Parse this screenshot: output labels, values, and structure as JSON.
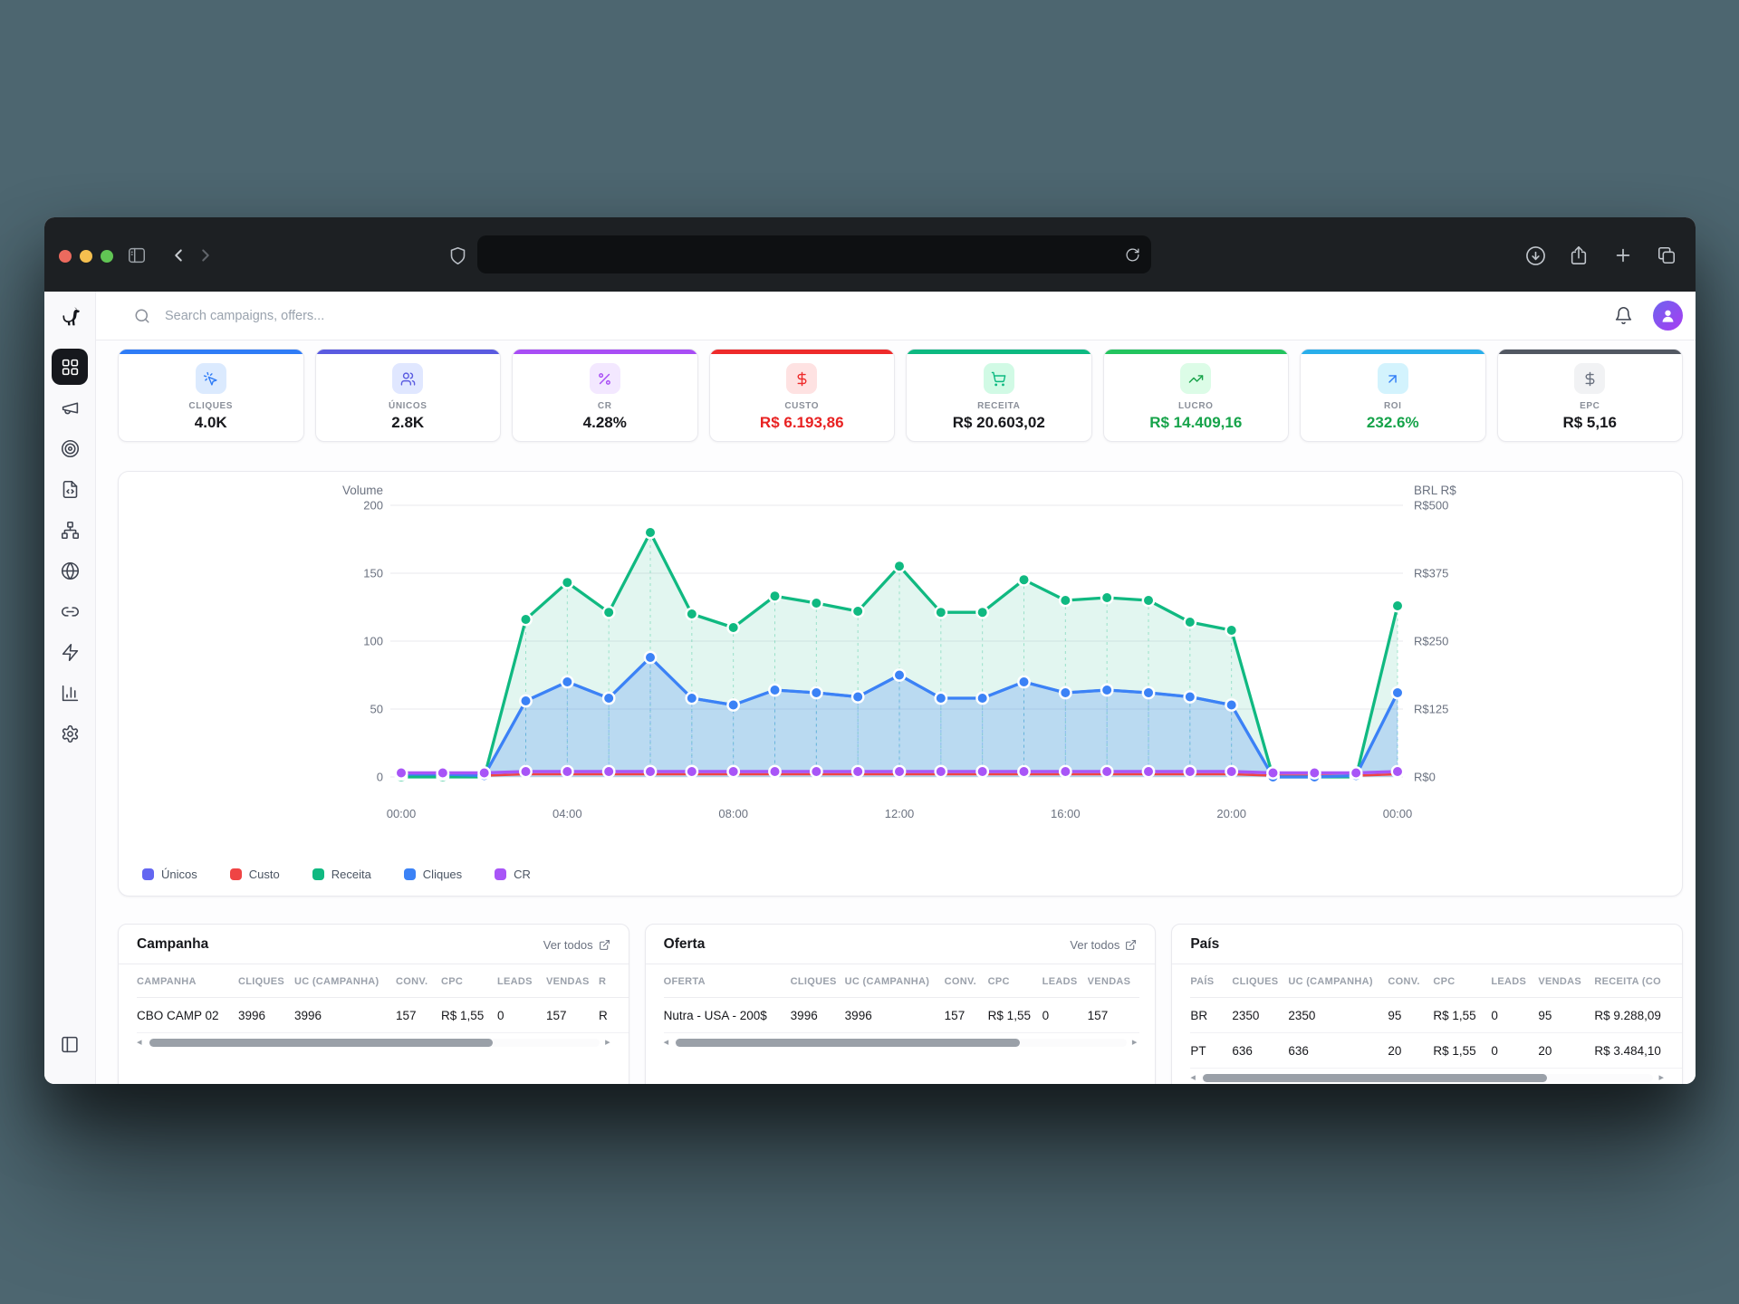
{
  "browser": {
    "url_value": ""
  },
  "app": {
    "search_placeholder": "Search campaigns, offers...",
    "sidebar": {
      "items": [
        {
          "icon": "layout-grid",
          "name": "dashboard",
          "active": true
        },
        {
          "icon": "megaphone",
          "name": "campaigns",
          "active": false
        },
        {
          "icon": "target",
          "name": "tracking",
          "active": false
        },
        {
          "icon": "file-code",
          "name": "scripts",
          "active": false
        },
        {
          "icon": "network",
          "name": "structure",
          "active": false
        },
        {
          "icon": "globe",
          "name": "domains",
          "active": false
        },
        {
          "icon": "link",
          "name": "links",
          "active": false
        },
        {
          "icon": "zap",
          "name": "automations",
          "active": false
        },
        {
          "icon": "bar-chart",
          "name": "reports",
          "active": false
        },
        {
          "icon": "settings",
          "name": "settings",
          "active": false
        }
      ]
    },
    "kpis": [
      {
        "label": "CLIQUES",
        "value": "4.0K",
        "icon": "pointer-click",
        "accent": "#2f7cf6",
        "chip_bg": "#dbeafe",
        "icon_color": "#2f7cf6",
        "value_color": "#17181c"
      },
      {
        "label": "ÚNICOS",
        "value": "2.8K",
        "icon": "users",
        "accent": "#5a5be0",
        "chip_bg": "#e0e7ff",
        "icon_color": "#5a5be0",
        "value_color": "#17181c"
      },
      {
        "label": "CR",
        "value": "4.28%",
        "icon": "percent",
        "accent": "#a84df5",
        "chip_bg": "#f3e8ff",
        "icon_color": "#a84df5",
        "value_color": "#17181c"
      },
      {
        "label": "CUSTO",
        "value": "R$ 6.193,86",
        "icon": "dollar",
        "accent": "#ee2b2b",
        "chip_bg": "#fee2e2",
        "icon_color": "#ee2b2b",
        "value_color": "#e82222"
      },
      {
        "label": "RECEITA",
        "value": "R$ 20.603,02",
        "icon": "cart",
        "accent": "#0db981",
        "chip_bg": "#d1fae5",
        "icon_color": "#0db981",
        "value_color": "#17181c"
      },
      {
        "label": "LUCRO",
        "value": "R$ 14.409,16",
        "icon": "trending-up",
        "accent": "#23c45e",
        "chip_bg": "#dcfce7",
        "icon_color": "#18a34a",
        "value_color": "#16a34a"
      },
      {
        "label": "ROI",
        "value": "232.6%",
        "icon": "arrow-up-right",
        "accent": "#29aeea",
        "chip_bg": "#d3f3fd",
        "icon_color": "#2f7cf6",
        "value_color": "#16a34a"
      },
      {
        "label": "EPC",
        "value": "R$ 5,16",
        "icon": "dollar",
        "accent": "#525862",
        "chip_bg": "#f1f2f4",
        "icon_color": "#6b7280",
        "value_color": "#17181c"
      }
    ],
    "chart_data": {
      "type": "line-area",
      "x": [
        "00:00",
        "01:00",
        "02:00",
        "03:00",
        "04:00",
        "05:00",
        "06:00",
        "07:00",
        "08:00",
        "09:00",
        "10:00",
        "11:00",
        "12:00",
        "13:00",
        "14:00",
        "15:00",
        "16:00",
        "17:00",
        "18:00",
        "19:00",
        "20:00",
        "21:00",
        "22:00",
        "23:00",
        "00:00"
      ],
      "x_tick_labels": [
        "00:00",
        "04:00",
        "08:00",
        "12:00",
        "16:00",
        "20:00",
        "00:00"
      ],
      "left_axis": {
        "title": "Volume",
        "min": 0,
        "max": 200,
        "ticks": [
          200,
          150,
          100,
          50,
          0
        ]
      },
      "right_axis": {
        "title": "BRL R$",
        "min": 0,
        "max": 500,
        "tick_labels": [
          "R$500",
          "R$375",
          "R$250",
          "R$125",
          "R$0"
        ]
      },
      "grid": true,
      "legend_position": "bottom-left",
      "series": [
        {
          "name": "Únicos",
          "color": "#6366f1",
          "axis": "left",
          "area": false,
          "dots": false,
          "values": [
            2,
            2,
            1,
            56,
            70,
            58,
            88,
            58,
            53,
            64,
            62,
            59,
            75,
            58,
            58,
            70,
            62,
            64,
            62,
            59,
            53,
            0,
            0,
            1,
            62
          ]
        },
        {
          "name": "Custo",
          "color": "#ef4444",
          "axis": "left",
          "area": false,
          "dots": false,
          "values": [
            1,
            1,
            1,
            2,
            2,
            2,
            2,
            2,
            2,
            2,
            2,
            2,
            2,
            2,
            2,
            2,
            2,
            2,
            2,
            2,
            2,
            1,
            1,
            1,
            2
          ]
        },
        {
          "name": "Receita",
          "color": "#10b981",
          "axis": "right",
          "area": true,
          "dots": true,
          "values": [
            0,
            0,
            0,
            290,
            358,
            303,
            450,
            300,
            275,
            333,
            320,
            305,
            388,
            303,
            303,
            363,
            325,
            330,
            325,
            285,
            270,
            0,
            0,
            0,
            315
          ]
        },
        {
          "name": "Cliques",
          "color": "#3b82f6",
          "axis": "left",
          "area": true,
          "dots": true,
          "values": [
            2,
            2,
            1,
            56,
            70,
            58,
            88,
            58,
            53,
            64,
            62,
            59,
            75,
            58,
            58,
            70,
            62,
            64,
            62,
            59,
            53,
            0,
            0,
            1,
            62
          ]
        },
        {
          "name": "CR",
          "color": "#a855f7",
          "axis": "left",
          "area": false,
          "dots": true,
          "values": [
            3,
            3,
            3,
            4,
            4,
            4,
            4,
            4,
            4,
            4,
            4,
            4,
            4,
            4,
            4,
            4,
            4,
            4,
            4,
            4,
            4,
            3,
            3,
            3,
            4
          ]
        }
      ],
      "legend": [
        {
          "label": "Únicos",
          "color": "#6366f1"
        },
        {
          "label": "Custo",
          "color": "#ef4444"
        },
        {
          "label": "Receita",
          "color": "#10b981"
        },
        {
          "label": "Cliques",
          "color": "#3b82f6"
        },
        {
          "label": "CR",
          "color": "#a855f7"
        }
      ]
    },
    "tables": [
      {
        "title": "Campanha",
        "link": "Ver todos",
        "headers": [
          "CAMPANHA",
          "CLIQUES",
          "UC (CAMPANHA)",
          "CONV.",
          "CPC",
          "LEADS",
          "VENDAS",
          "R"
        ],
        "rows": [
          [
            "CBO CAMP 02",
            "3996",
            "3996",
            "157",
            "R$ 1,55",
            "0",
            "157",
            "R"
          ]
        ]
      },
      {
        "title": "Oferta",
        "link": "Ver todos",
        "headers": [
          "OFERTA",
          "CLIQUES",
          "UC (CAMPANHA)",
          "CONV.",
          "CPC",
          "LEADS",
          "VENDAS"
        ],
        "rows": [
          [
            "Nutra - USA - 200$",
            "3996",
            "3996",
            "157",
            "R$ 1,55",
            "0",
            "157"
          ]
        ]
      },
      {
        "title": "País",
        "link": "",
        "headers": [
          "PAÍS",
          "CLIQUES",
          "UC (CAMPANHA)",
          "CONV.",
          "CPC",
          "LEADS",
          "VENDAS",
          "RECEITA (CO"
        ],
        "rows": [
          [
            "BR",
            "2350",
            "2350",
            "95",
            "R$ 1,55",
            "0",
            "95",
            "R$ 9.288,09"
          ],
          [
            "PT",
            "636",
            "636",
            "20",
            "R$ 1,55",
            "0",
            "20",
            "R$ 3.484,10"
          ]
        ]
      }
    ]
  }
}
